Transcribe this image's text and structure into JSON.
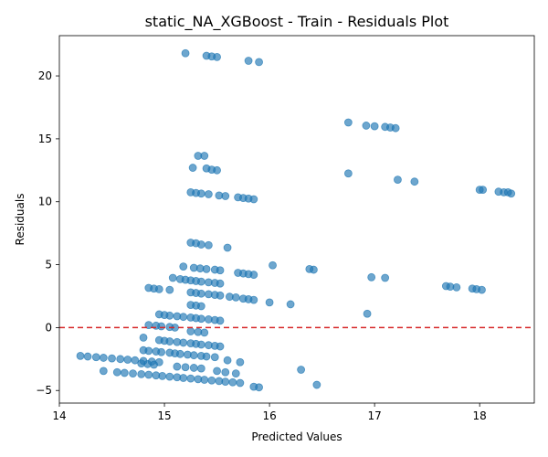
{
  "chart_data": {
    "type": "scatter",
    "title": "static_NA_XGBoost - Train - Residuals Plot",
    "xlabel": "Predicted Values",
    "ylabel": "Residuals",
    "xlim": [
      14.0,
      18.52
    ],
    "ylim": [
      -6.0,
      23.2
    ],
    "xticks": [
      14,
      15,
      16,
      17,
      18
    ],
    "yticks": [
      -5,
      0,
      5,
      10,
      15,
      20
    ],
    "reference_line": {
      "y": 0,
      "color": "#d62728",
      "style": "dashed"
    },
    "grid": false,
    "point_color": "#1f77b4",
    "points": [
      [
        15.2,
        21.8
      ],
      [
        15.4,
        21.6
      ],
      [
        15.45,
        21.55
      ],
      [
        15.5,
        21.5
      ],
      [
        15.8,
        21.2
      ],
      [
        15.9,
        21.1
      ],
      [
        16.75,
        16.3
      ],
      [
        16.92,
        16.05
      ],
      [
        17.0,
        16.0
      ],
      [
        17.1,
        15.95
      ],
      [
        17.15,
        15.9
      ],
      [
        17.2,
        15.85
      ],
      [
        15.32,
        13.65
      ],
      [
        15.38,
        13.65
      ],
      [
        15.27,
        12.7
      ],
      [
        15.4,
        12.65
      ],
      [
        15.45,
        12.55
      ],
      [
        15.5,
        12.5
      ],
      [
        16.75,
        12.25
      ],
      [
        17.22,
        11.75
      ],
      [
        17.38,
        11.6
      ],
      [
        15.25,
        10.75
      ],
      [
        15.3,
        10.7
      ],
      [
        15.35,
        10.65
      ],
      [
        15.42,
        10.6
      ],
      [
        15.52,
        10.5
      ],
      [
        15.58,
        10.45
      ],
      [
        15.7,
        10.35
      ],
      [
        15.75,
        10.3
      ],
      [
        15.8,
        10.25
      ],
      [
        15.85,
        10.2
      ],
      [
        18.0,
        10.95
      ],
      [
        18.03,
        10.95
      ],
      [
        18.18,
        10.8
      ],
      [
        18.23,
        10.75
      ],
      [
        18.27,
        10.75
      ],
      [
        18.3,
        10.65
      ],
      [
        15.25,
        6.75
      ],
      [
        15.3,
        6.7
      ],
      [
        15.35,
        6.6
      ],
      [
        15.42,
        6.55
      ],
      [
        15.6,
        6.35
      ],
      [
        15.18,
        4.85
      ],
      [
        15.28,
        4.75
      ],
      [
        15.34,
        4.7
      ],
      [
        15.4,
        4.65
      ],
      [
        15.48,
        4.6
      ],
      [
        15.53,
        4.55
      ],
      [
        15.7,
        4.35
      ],
      [
        15.75,
        4.3
      ],
      [
        15.8,
        4.25
      ],
      [
        15.85,
        4.2
      ],
      [
        16.03,
        4.95
      ],
      [
        16.38,
        4.65
      ],
      [
        16.42,
        4.6
      ],
      [
        16.97,
        4.0
      ],
      [
        17.1,
        3.95
      ],
      [
        15.08,
        3.95
      ],
      [
        15.15,
        3.85
      ],
      [
        15.2,
        3.8
      ],
      [
        15.25,
        3.75
      ],
      [
        15.3,
        3.7
      ],
      [
        15.35,
        3.65
      ],
      [
        15.42,
        3.6
      ],
      [
        15.48,
        3.55
      ],
      [
        15.53,
        3.5
      ],
      [
        14.85,
        3.15
      ],
      [
        14.9,
        3.1
      ],
      [
        14.95,
        3.05
      ],
      [
        15.05,
        3.0
      ],
      [
        17.68,
        3.3
      ],
      [
        17.72,
        3.25
      ],
      [
        17.78,
        3.2
      ],
      [
        17.93,
        3.1
      ],
      [
        17.97,
        3.05
      ],
      [
        18.02,
        3.0
      ],
      [
        15.25,
        2.8
      ],
      [
        15.3,
        2.75
      ],
      [
        15.35,
        2.7
      ],
      [
        15.42,
        2.65
      ],
      [
        15.48,
        2.6
      ],
      [
        15.53,
        2.55
      ],
      [
        15.62,
        2.45
      ],
      [
        15.68,
        2.4
      ],
      [
        15.75,
        2.3
      ],
      [
        15.8,
        2.25
      ],
      [
        15.85,
        2.2
      ],
      [
        16.0,
        2.0
      ],
      [
        16.2,
        1.85
      ],
      [
        15.25,
        1.8
      ],
      [
        15.3,
        1.75
      ],
      [
        15.35,
        1.7
      ],
      [
        16.93,
        1.1
      ],
      [
        14.95,
        1.05
      ],
      [
        15.0,
        1.0
      ],
      [
        15.05,
        0.95
      ],
      [
        15.12,
        0.9
      ],
      [
        15.18,
        0.85
      ],
      [
        15.25,
        0.8
      ],
      [
        15.3,
        0.75
      ],
      [
        15.35,
        0.7
      ],
      [
        15.42,
        0.65
      ],
      [
        15.48,
        0.6
      ],
      [
        15.53,
        0.55
      ],
      [
        14.85,
        0.2
      ],
      [
        14.92,
        0.15
      ],
      [
        14.97,
        0.1
      ],
      [
        15.05,
        0.05
      ],
      [
        15.1,
        0.0
      ],
      [
        15.25,
        -0.3
      ],
      [
        15.32,
        -0.35
      ],
      [
        15.38,
        -0.4
      ],
      [
        14.8,
        -0.8
      ],
      [
        14.95,
        -1.0
      ],
      [
        15.0,
        -1.05
      ],
      [
        15.05,
        -1.1
      ],
      [
        15.12,
        -1.15
      ],
      [
        15.18,
        -1.2
      ],
      [
        15.25,
        -1.25
      ],
      [
        15.3,
        -1.3
      ],
      [
        15.35,
        -1.35
      ],
      [
        15.42,
        -1.4
      ],
      [
        15.48,
        -1.45
      ],
      [
        15.53,
        -1.5
      ],
      [
        14.8,
        -1.8
      ],
      [
        14.85,
        -1.85
      ],
      [
        14.92,
        -1.9
      ],
      [
        14.97,
        -1.95
      ],
      [
        15.05,
        -2.0
      ],
      [
        15.1,
        -2.05
      ],
      [
        15.15,
        -2.1
      ],
      [
        15.22,
        -2.15
      ],
      [
        15.28,
        -2.2
      ],
      [
        15.35,
        -2.25
      ],
      [
        15.4,
        -2.3
      ],
      [
        15.48,
        -2.35
      ],
      [
        15.6,
        -2.6
      ],
      [
        15.72,
        -2.75
      ],
      [
        14.2,
        -2.25
      ],
      [
        14.27,
        -2.3
      ],
      [
        14.35,
        -2.35
      ],
      [
        14.42,
        -2.4
      ],
      [
        14.5,
        -2.45
      ],
      [
        14.58,
        -2.5
      ],
      [
        14.65,
        -2.55
      ],
      [
        14.72,
        -2.6
      ],
      [
        14.8,
        -2.65
      ],
      [
        14.88,
        -2.7
      ],
      [
        14.95,
        -2.75
      ],
      [
        14.78,
        -2.85
      ],
      [
        14.84,
        -2.9
      ],
      [
        14.9,
        -2.95
      ],
      [
        15.12,
        -3.1
      ],
      [
        15.2,
        -3.15
      ],
      [
        15.28,
        -3.2
      ],
      [
        15.35,
        -3.25
      ],
      [
        15.5,
        -3.45
      ],
      [
        15.58,
        -3.55
      ],
      [
        15.68,
        -3.65
      ],
      [
        16.3,
        -3.35
      ],
      [
        16.45,
        -4.55
      ],
      [
        14.42,
        -3.45
      ],
      [
        14.55,
        -3.55
      ],
      [
        14.62,
        -3.6
      ],
      [
        14.7,
        -3.65
      ],
      [
        14.78,
        -3.7
      ],
      [
        14.85,
        -3.75
      ],
      [
        14.92,
        -3.8
      ],
      [
        14.98,
        -3.85
      ],
      [
        15.05,
        -3.9
      ],
      [
        15.12,
        -3.95
      ],
      [
        15.18,
        -4.0
      ],
      [
        15.25,
        -4.05
      ],
      [
        15.32,
        -4.1
      ],
      [
        15.38,
        -4.15
      ],
      [
        15.45,
        -4.2
      ],
      [
        15.52,
        -4.25
      ],
      [
        15.58,
        -4.3
      ],
      [
        15.65,
        -4.35
      ],
      [
        15.72,
        -4.4
      ],
      [
        15.85,
        -4.7
      ],
      [
        15.9,
        -4.75
      ]
    ]
  }
}
